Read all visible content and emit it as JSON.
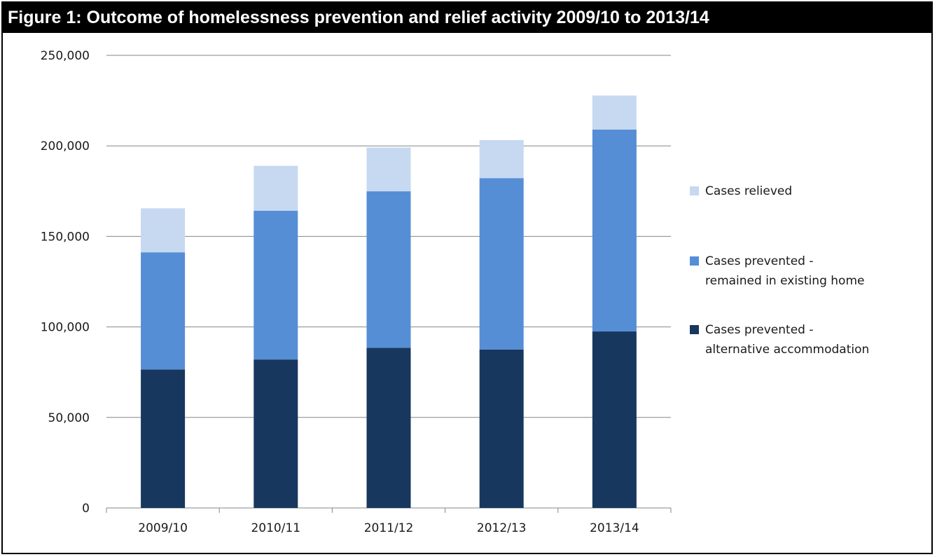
{
  "figure_title": "Figure 1: Outcome of homelessness prevention and relief activity 2009/10 to 2013/14",
  "colors": {
    "relieved": "#c6d9f1",
    "remained": "#558ed5",
    "alternative": "#17375e",
    "gridline": "#868686",
    "axis": "#868686"
  },
  "chart_data": {
    "type": "bar",
    "stacked": true,
    "title": "Figure 1: Outcome of homelessness prevention and relief activity 2009/10 to 2013/14",
    "xlabel": "",
    "ylabel": "",
    "ylim": [
      0,
      250000
    ],
    "yticks": [
      0,
      50000,
      100000,
      150000,
      200000,
      250000
    ],
    "ytick_labels": [
      "0",
      "50,000",
      "100,000",
      "150,000",
      "200,000",
      "250,000"
    ],
    "grid": true,
    "legend_position": "right",
    "categories": [
      "2009/10",
      "2010/11",
      "2011/12",
      "2012/13",
      "2013/14"
    ],
    "series": [
      {
        "name": "Cases prevented - alternative accommodation",
        "color_key": "alternative",
        "values": [
          76500,
          82000,
          88500,
          87500,
          97500
        ]
      },
      {
        "name": "Cases prevented - remained in existing home",
        "color_key": "remained",
        "values": [
          64700,
          82200,
          86400,
          94700,
          111500
        ]
      },
      {
        "name": "Cases relieved",
        "color_key": "relieved",
        "values": [
          24300,
          24800,
          24200,
          21000,
          18800
        ]
      }
    ],
    "legend": [
      {
        "lines": [
          "Cases relieved"
        ],
        "color_key": "relieved"
      },
      {
        "lines": [
          "Cases prevented -",
          "remained in existing home"
        ],
        "color_key": "remained"
      },
      {
        "lines": [
          "Cases prevented -",
          "alternative accommodation"
        ],
        "color_key": "alternative"
      }
    ]
  }
}
